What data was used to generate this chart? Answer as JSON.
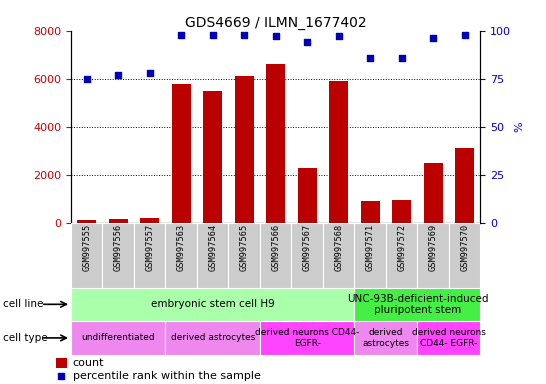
{
  "title": "GDS4669 / ILMN_1677402",
  "samples": [
    "GSM997555",
    "GSM997556",
    "GSM997557",
    "GSM997563",
    "GSM997564",
    "GSM997565",
    "GSM997566",
    "GSM997567",
    "GSM997568",
    "GSM997571",
    "GSM997572",
    "GSM997569",
    "GSM997570"
  ],
  "counts": [
    100,
    150,
    200,
    5800,
    5500,
    6100,
    6600,
    2300,
    5900,
    900,
    950,
    2500,
    3100
  ],
  "percentiles": [
    75,
    77,
    78,
    98,
    98,
    98,
    97,
    94,
    97,
    86,
    86,
    96,
    98
  ],
  "ylim_left": [
    0,
    8000
  ],
  "ylim_right": [
    0,
    100
  ],
  "yticks_left": [
    0,
    2000,
    4000,
    6000,
    8000
  ],
  "yticks_right": [
    0,
    25,
    50,
    75,
    100
  ],
  "bar_color": "#bb0000",
  "dot_color": "#0000bb",
  "grid_color": "#000000",
  "cell_line_groups": [
    {
      "label": "embryonic stem cell H9",
      "start": 0,
      "end": 8,
      "color": "#aaffaa"
    },
    {
      "label": "UNC-93B-deficient-induced\npluripotent stem",
      "start": 9,
      "end": 12,
      "color": "#44ee44"
    }
  ],
  "cell_type_groups": [
    {
      "label": "undifferentiated",
      "start": 0,
      "end": 2,
      "color": "#ee88ee"
    },
    {
      "label": "derived astrocytes",
      "start": 3,
      "end": 5,
      "color": "#ee88ee"
    },
    {
      "label": "derived neurons CD44-\nEGFR-",
      "start": 6,
      "end": 8,
      "color": "#ff44ff"
    },
    {
      "label": "derived\nastrocytes",
      "start": 9,
      "end": 10,
      "color": "#ee88ee"
    },
    {
      "label": "derived neurons\nCD44- EGFR-",
      "start": 11,
      "end": 12,
      "color": "#ff44ff"
    }
  ],
  "background_color": "#ffffff",
  "tick_label_color_left": "#cc0000",
  "tick_label_color_right": "#0000cc",
  "xlabel_bg": "#cccccc"
}
